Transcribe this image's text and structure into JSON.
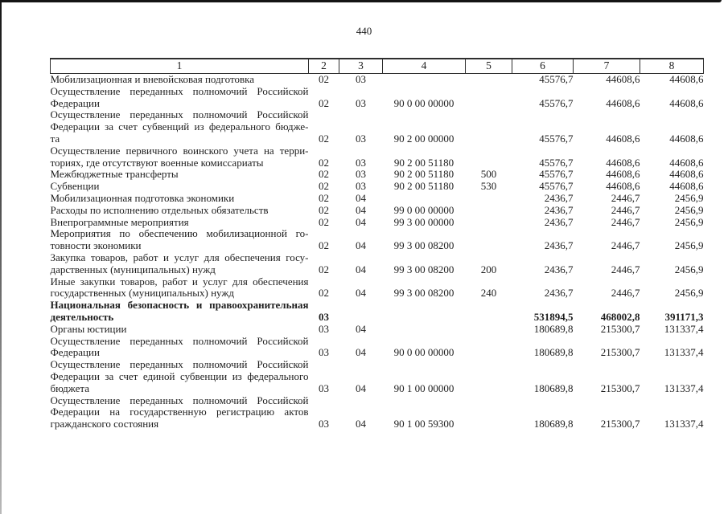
{
  "page": {
    "number": "440"
  },
  "table": {
    "header": [
      "1",
      "2",
      "3",
      "4",
      "5",
      "6",
      "7",
      "8"
    ],
    "rows": [
      {
        "lines": [
          "Мобилизационная и вневойсковая подготовка"
        ],
        "c2": "02",
        "c3": "03",
        "c4": "",
        "c5": "",
        "c6": "45576,7",
        "c7": "44608,6",
        "c8": "44608,6",
        "bold": false
      },
      {
        "lines": [
          "Осуществление переданных полномочий Российской",
          "Федерации"
        ],
        "c2": "02",
        "c3": "03",
        "c4": "90 0 00 00000",
        "c5": "",
        "c6": "45576,7",
        "c7": "44608,6",
        "c8": "44608,6",
        "bold": false
      },
      {
        "lines": [
          "Осуществление переданных полномочий Российской",
          "Федерации за счет субвенций из федерального бюдже-",
          "та"
        ],
        "c2": "02",
        "c3": "03",
        "c4": "90 2 00 00000",
        "c5": "",
        "c6": "45576,7",
        "c7": "44608,6",
        "c8": "44608,6",
        "bold": false
      },
      {
        "lines": [
          "Осуществление первичного воинского учета на терри-",
          "ториях, где отсутствуют военные комиссариаты"
        ],
        "c2": "02",
        "c3": "03",
        "c4": "90 2 00 51180",
        "c5": "",
        "c6": "45576,7",
        "c7": "44608,6",
        "c8": "44608,6",
        "bold": false
      },
      {
        "lines": [
          "Межбюджетные трансферты"
        ],
        "c2": "02",
        "c3": "03",
        "c4": "90 2 00 51180",
        "c5": "500",
        "c6": "45576,7",
        "c7": "44608,6",
        "c8": "44608,6",
        "bold": false
      },
      {
        "lines": [
          "Субвенции"
        ],
        "c2": "02",
        "c3": "03",
        "c4": "90 2 00 51180",
        "c5": "530",
        "c6": "45576,7",
        "c7": "44608,6",
        "c8": "44608,6",
        "bold": false
      },
      {
        "lines": [
          "Мобилизационная подготовка экономики"
        ],
        "c2": "02",
        "c3": "04",
        "c4": "",
        "c5": "",
        "c6": "2436,7",
        "c7": "2446,7",
        "c8": "2456,9",
        "bold": false
      },
      {
        "lines": [
          "Расходы по исполнению отдельных обязательств"
        ],
        "c2": "02",
        "c3": "04",
        "c4": "99 0 00 00000",
        "c5": "",
        "c6": "2436,7",
        "c7": "2446,7",
        "c8": "2456,9",
        "bold": false
      },
      {
        "lines": [
          "Внепрограммные мероприятия"
        ],
        "c2": "02",
        "c3": "04",
        "c4": "99 3 00 00000",
        "c5": "",
        "c6": "2436,7",
        "c7": "2446,7",
        "c8": "2456,9",
        "bold": false
      },
      {
        "lines": [
          "Мероприятия по обеспечению мобилизационной го-",
          "товности экономики"
        ],
        "c2": "02",
        "c3": "04",
        "c4": "99 3 00 08200",
        "c5": "",
        "c6": "2436,7",
        "c7": "2446,7",
        "c8": "2456,9",
        "bold": false
      },
      {
        "lines": [
          "Закупка товаров, работ и услуг для обеспечения госу-",
          "дарственных (муниципальных) нужд"
        ],
        "c2": "02",
        "c3": "04",
        "c4": "99 3 00 08200",
        "c5": "200",
        "c6": "2436,7",
        "c7": "2446,7",
        "c8": "2456,9",
        "bold": false
      },
      {
        "lines": [
          "Иные закупки товаров, работ и услуг для обеспечения",
          "государственных (муниципальных) нужд"
        ],
        "c2": "02",
        "c3": "04",
        "c4": "99 3 00 08200",
        "c5": "240",
        "c6": "2436,7",
        "c7": "2446,7",
        "c8": "2456,9",
        "bold": false
      },
      {
        "lines": [
          "Национальная безопасность и правоохранительная",
          "деятельность"
        ],
        "c2": "03",
        "c3": "",
        "c4": "",
        "c5": "",
        "c6": "531894,5",
        "c7": "468002,8",
        "c8": "391171,3",
        "bold": true
      },
      {
        "lines": [
          "Органы юстиции"
        ],
        "c2": "03",
        "c3": "04",
        "c4": "",
        "c5": "",
        "c6": "180689,8",
        "c7": "215300,7",
        "c8": "131337,4",
        "bold": false
      },
      {
        "lines": [
          "Осуществление переданных полномочий Российской",
          "Федерации"
        ],
        "c2": "03",
        "c3": "04",
        "c4": "90 0 00 00000",
        "c5": "",
        "c6": "180689,8",
        "c7": "215300,7",
        "c8": "131337,4",
        "bold": false
      },
      {
        "lines": [
          "Осуществление переданных полномочий Российской",
          "Федерации за счет единой субвенции из федерального",
          "бюджета"
        ],
        "c2": "03",
        "c3": "04",
        "c4": "90 1 00 00000",
        "c5": "",
        "c6": "180689,8",
        "c7": "215300,7",
        "c8": "131337,4",
        "bold": false
      },
      {
        "lines": [
          "Осуществление переданных полномочий Российской",
          "Федерации на государственную регистрацию актов",
          "гражданского состояния"
        ],
        "c2": "03",
        "c3": "04",
        "c4": "90 1 00 59300",
        "c5": "",
        "c6": "180689,8",
        "c7": "215300,7",
        "c8": "131337,4",
        "bold": false
      }
    ]
  }
}
